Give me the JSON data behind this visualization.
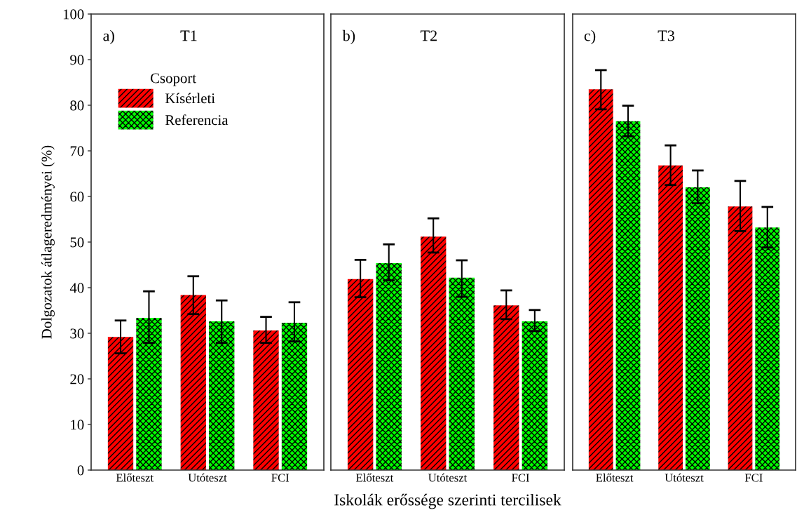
{
  "chart_data": [
    {
      "type": "bar",
      "annotations": [
        "a)",
        "T1"
      ],
      "ylabel": "Dolgozatok átlageredményei (%)",
      "legend_title": "Csoport",
      "legend": "top left",
      "categories": [
        "Előteszt",
        "Utóteszt",
        "FCI"
      ],
      "ylim": [
        0,
        100
      ],
      "yticks": [
        0,
        10,
        20,
        30,
        40,
        50,
        60,
        70,
        80,
        90,
        100
      ],
      "grid": false,
      "series": [
        {
          "name": "Kísérleti",
          "color": "#ff0000",
          "values": [
            29.2,
            38.4,
            30.6
          ],
          "errors": [
            [
              25.6,
              32.8
            ],
            [
              34.2,
              42.5
            ],
            [
              27.9,
              33.6
            ]
          ]
        },
        {
          "name": "Referencia",
          "color": "#00ff00",
          "values": [
            33.4,
            32.6,
            32.3
          ],
          "errors": [
            [
              27.9,
              39.2
            ],
            [
              27.9,
              37.2
            ],
            [
              28.2,
              36.8
            ]
          ]
        }
      ]
    },
    {
      "type": "bar",
      "annotations": [
        "b)",
        "T2"
      ],
      "xlabel": "Iskolák erőssége szerinti tercilisek",
      "categories": [
        "Előteszt",
        "Utóteszt",
        "FCI"
      ],
      "ylim": [
        0,
        100
      ],
      "tick_labels": "x",
      "grid": false,
      "series": [
        {
          "color": "#ff0000",
          "values": [
            41.9,
            51.2,
            36.1
          ],
          "errors": [
            [
              37.9,
              46.1
            ],
            [
              47.7,
              55.2
            ],
            [
              33.1,
              39.4
            ]
          ]
        },
        {
          "color": "#00ff00",
          "values": [
            45.4,
            42.2,
            32.6
          ],
          "errors": [
            [
              41.6,
              49.5
            ],
            [
              38.0,
              46.0
            ],
            [
              30.5,
              35.1
            ]
          ]
        }
      ]
    },
    {
      "type": "bar",
      "annotations": [
        "c)",
        "T3"
      ],
      "categories": [
        "Előteszt",
        "Utóteszt",
        "FCI"
      ],
      "ylim": [
        0,
        100
      ],
      "tick_labels": "x",
      "grid": false,
      "series": [
        {
          "color": "#ff0000",
          "values": [
            83.5,
            66.8,
            57.8
          ],
          "errors": [
            [
              79.1,
              87.7
            ],
            [
              62.5,
              71.2
            ],
            [
              52.4,
              63.4
            ]
          ]
        },
        {
          "color": "#00ff00",
          "values": [
            76.5,
            62.0,
            53.2
          ],
          "errors": [
            [
              73.2,
              79.9
            ],
            [
              58.5,
              65.7
            ],
            [
              48.8,
              57.7
            ]
          ]
        }
      ]
    }
  ]
}
